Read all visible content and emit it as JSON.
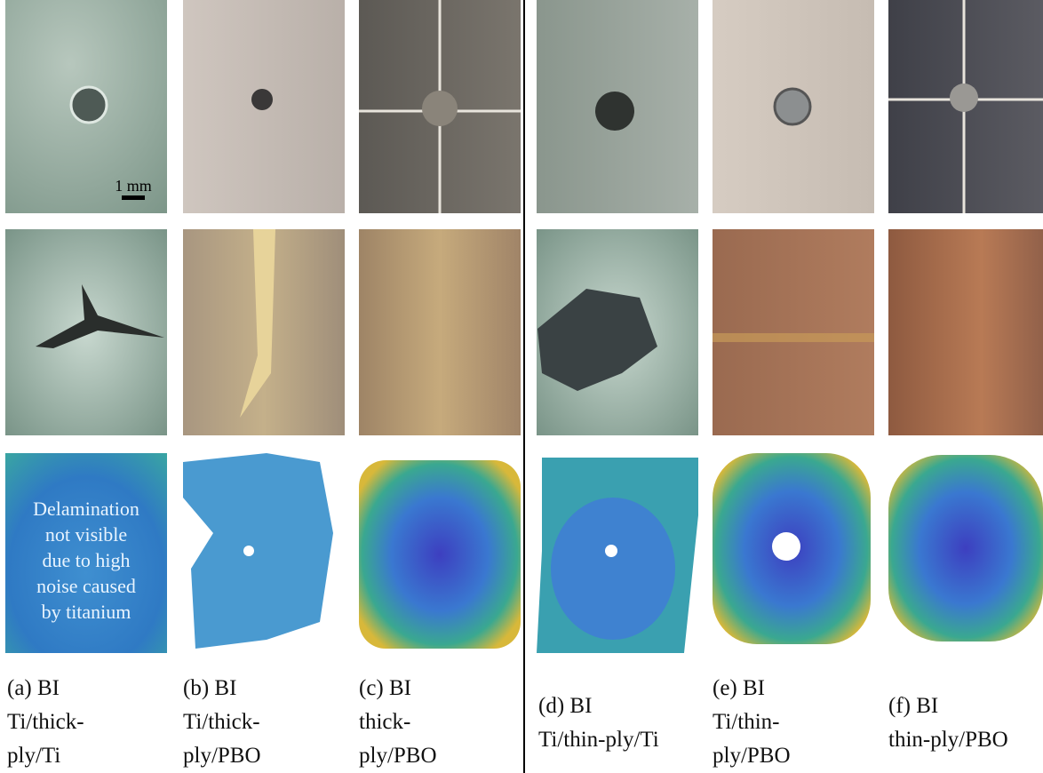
{
  "scale_bar": "1 mm",
  "overlay_note": [
    "Delamination",
    "not visible",
    "due to high",
    "noise caused",
    "by titanium"
  ],
  "panels": [
    {
      "caption": [
        "(a) BI",
        "Ti/thick-",
        "ply/Ti"
      ]
    },
    {
      "caption": [
        "(b) BI",
        "Ti/thick-",
        "ply/PBO"
      ]
    },
    {
      "caption": [
        "(c) BI",
        "thick-",
        "ply/PBO"
      ]
    },
    {
      "caption": [
        "(d) BI",
        "Ti/thin-ply/Ti"
      ]
    },
    {
      "caption": [
        "(e) BI",
        "Ti/thin-",
        "ply/PBO"
      ]
    },
    {
      "caption": [
        "(f) BI",
        "thin-ply/PBO"
      ]
    }
  ]
}
